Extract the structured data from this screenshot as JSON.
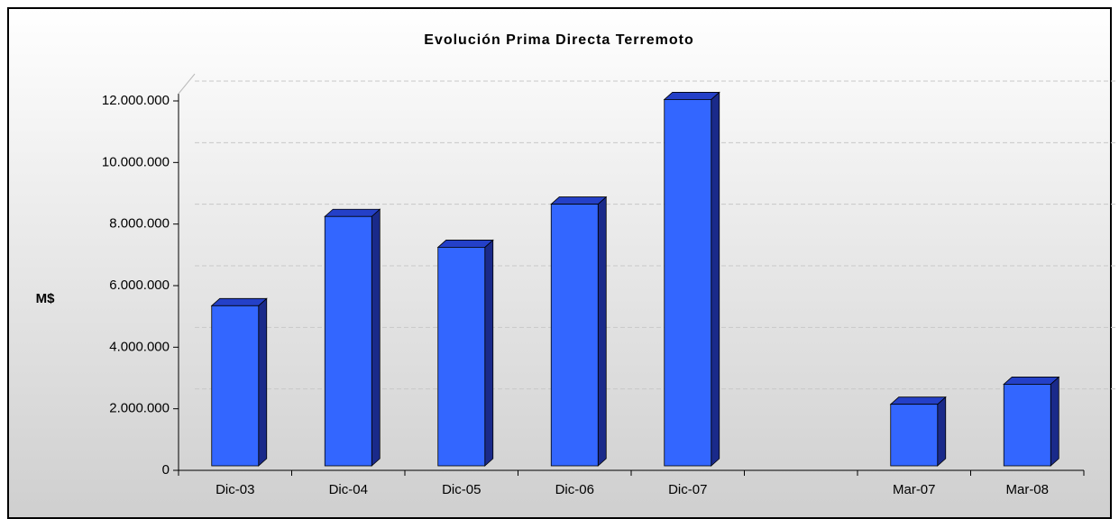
{
  "chart_data": {
    "type": "bar3d",
    "title": "Evolución Prima Directa Terremoto",
    "y_label": "M$",
    "categories": [
      "Dic-03",
      "Dic-04",
      "Dic-05",
      "Dic-06",
      "Dic-07",
      null,
      "Mar-07",
      "Mar-08"
    ],
    "values": [
      5200000,
      8100000,
      7100000,
      8500000,
      11900000,
      null,
      2000000,
      2650000
    ],
    "color": "#3366ff",
    "ylim": [
      0,
      12000000
    ],
    "yticks": [
      0,
      {
        "value": 2000000,
        "label": "2.000.000"
      },
      {
        "value": 4000000,
        "label": "4.000.000"
      },
      {
        "value": 6000000,
        "label": "6.000.000"
      },
      {
        "value": 8000000,
        "label": "8.000.000"
      },
      {
        "value": 10000000,
        "label": "10.000.000"
      },
      {
        "value": 12000000,
        "label": "12.000.000"
      }
    ],
    "grid": true
  }
}
